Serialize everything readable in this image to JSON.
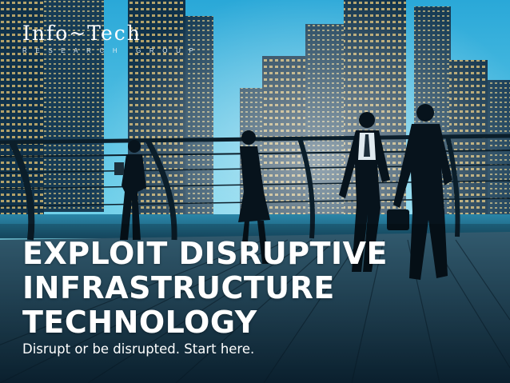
{
  "logo": {
    "name": "Info~Tech",
    "subtitle": "RESEARCH GROUP"
  },
  "headline": {
    "line1": "EXPLOIT DISRUPTIVE",
    "line2": "INFRASTRUCTURE",
    "line3": "TECHNOLOGY"
  },
  "tagline": "Disrupt or be disrupted. Start here.",
  "colors": {
    "sky": "#4fc3e6",
    "deck": "#1e3a4e",
    "text": "#ffffff"
  }
}
